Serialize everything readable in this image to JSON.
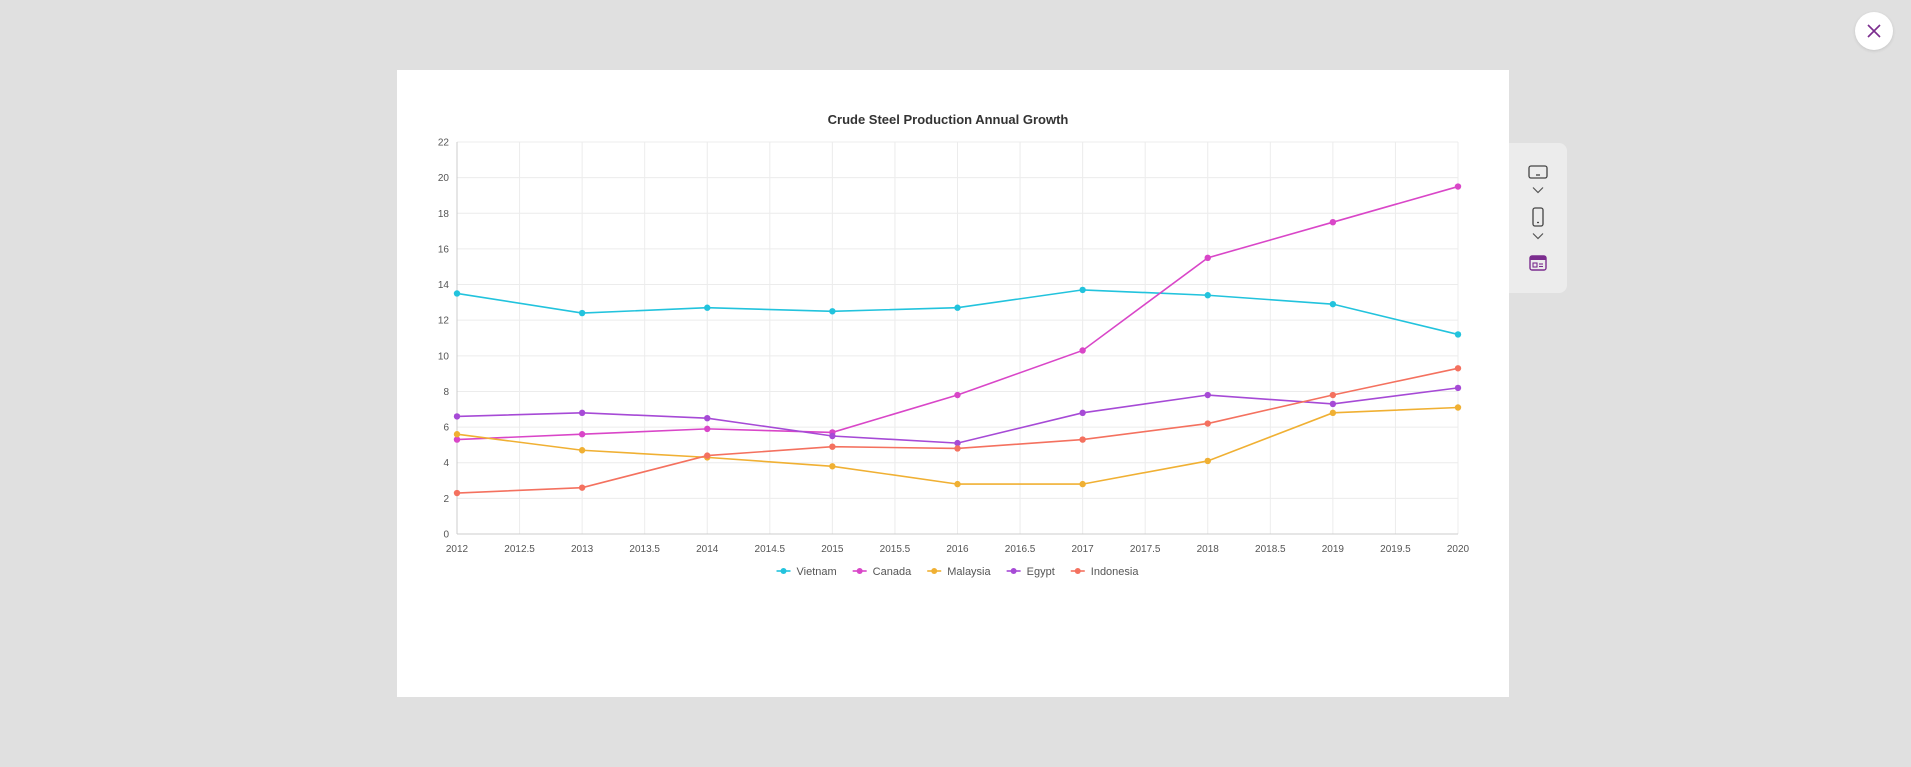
{
  "chart_data": {
    "type": "line",
    "title": "Crude Steel Production Annual Growth",
    "xlabel": "",
    "ylabel": "",
    "xlim": [
      2012,
      2020
    ],
    "ylim": [
      0,
      22
    ],
    "x_ticks": [
      "2012",
      "2012.5",
      "2013",
      "2013.5",
      "2014",
      "2014.5",
      "2015",
      "2015.5",
      "2016",
      "2016.5",
      "2017",
      "2017.5",
      "2018",
      "2018.5",
      "2019",
      "2019.5",
      "2020"
    ],
    "y_ticks": [
      "0",
      "2",
      "4",
      "6",
      "8",
      "10",
      "12",
      "14",
      "16",
      "18",
      "20",
      "22"
    ],
    "grid": true,
    "legend_position": "bottom",
    "x": [
      2012,
      2013,
      2014,
      2015,
      2016,
      2017,
      2018,
      2019,
      2020
    ],
    "series": [
      {
        "name": "Vietnam",
        "color": "#22c3dd",
        "values": [
          13.5,
          12.4,
          12.7,
          12.5,
          12.7,
          13.7,
          13.4,
          12.9,
          11.2
        ]
      },
      {
        "name": "Canada",
        "color": "#d946c8",
        "values": [
          5.3,
          5.6,
          5.9,
          5.7,
          7.8,
          10.3,
          15.5,
          17.5,
          19.5
        ]
      },
      {
        "name": "Malaysia",
        "color": "#f0b033",
        "values": [
          5.6,
          4.7,
          4.3,
          3.8,
          2.8,
          2.8,
          4.1,
          6.8,
          7.1
        ]
      },
      {
        "name": "Egypt",
        "color": "#a64ad6",
        "values": [
          6.6,
          6.8,
          6.5,
          5.5,
          5.1,
          6.8,
          7.8,
          7.3,
          8.2
        ]
      },
      {
        "name": "Indonesia",
        "color": "#f4715f",
        "values": [
          2.3,
          2.6,
          4.4,
          4.9,
          4.8,
          5.3,
          6.2,
          7.8,
          9.3
        ]
      }
    ]
  },
  "toolbar": {
    "icons": [
      "tablet-landscape-icon",
      "chevron-down-icon",
      "phone-portrait-icon",
      "chevron-down-icon",
      "web-layout-icon"
    ],
    "accent_color": "#7b2d8e"
  },
  "close_icon": "close-icon"
}
